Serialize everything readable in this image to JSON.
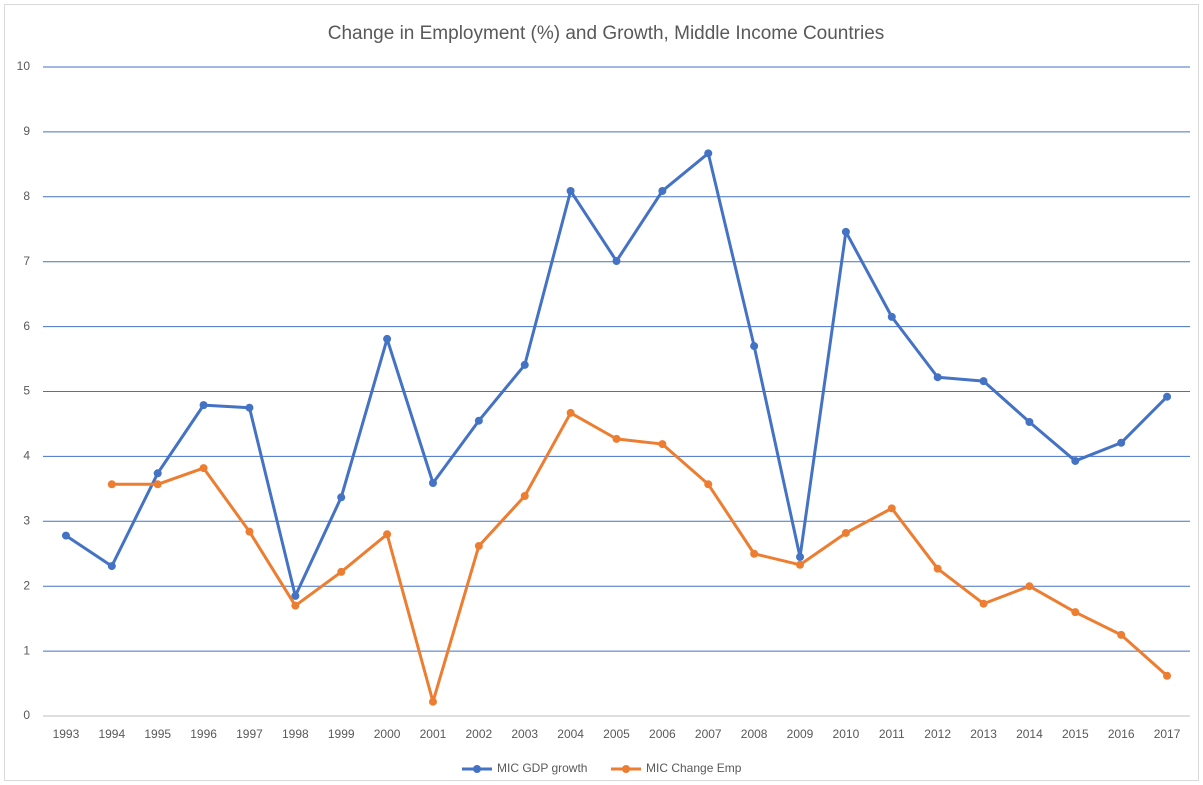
{
  "chart_data": {
    "type": "line",
    "title": "Change in Employment (%) and Growth, Middle Income Countries",
    "categories": [
      "1993",
      "1994",
      "1995",
      "1996",
      "1997",
      "1998",
      "1999",
      "2000",
      "2001",
      "2002",
      "2003",
      "2004",
      "2005",
      "2006",
      "2007",
      "2008",
      "2009",
      "2010",
      "2011",
      "2012",
      "2013",
      "2014",
      "2015",
      "2016",
      "2017"
    ],
    "series": [
      {
        "name": "MIC GDP growth",
        "color": "#4472c4",
        "values": [
          2.78,
          2.31,
          3.74,
          4.79,
          4.75,
          1.85,
          3.37,
          5.81,
          3.59,
          4.55,
          5.41,
          8.09,
          7.01,
          8.09,
          8.67,
          5.7,
          2.45,
          7.46,
          6.15,
          5.22,
          5.16,
          4.53,
          3.93,
          4.21,
          4.92
        ]
      },
      {
        "name": "MIC Change Emp",
        "color": "#ed7d31",
        "values": [
          null,
          3.57,
          3.57,
          3.82,
          2.84,
          1.7,
          2.22,
          2.8,
          0.22,
          2.62,
          3.39,
          4.67,
          4.27,
          4.19,
          3.57,
          2.5,
          2.33,
          2.82,
          3.2,
          2.27,
          1.73,
          2.0,
          1.6,
          1.25,
          0.62
        ]
      }
    ],
    "ylim": [
      0,
      10
    ],
    "yticks": [
      0,
      1,
      2,
      3,
      4,
      5,
      6,
      7,
      8,
      9,
      10
    ],
    "grid": true,
    "legend": "bottom"
  }
}
